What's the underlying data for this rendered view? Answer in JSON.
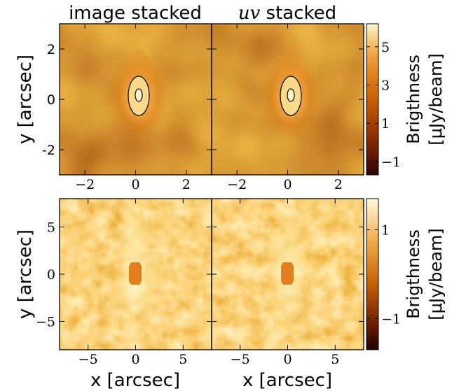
{
  "chart_data": {
    "type": "heatmap",
    "colormap": [
      "#2a0500",
      "#8e2d00",
      "#d46a00",
      "#f2a340",
      "#fff6c8"
    ],
    "top_row": {
      "panels": [
        {
          "title_math": "",
          "title_text": "image stacked"
        },
        {
          "title_math": "uv",
          "title_text": " stacked"
        }
      ],
      "x_range": [
        -3,
        3
      ],
      "y_range": [
        -3,
        3
      ],
      "x_ticks": [
        -2,
        0,
        2
      ],
      "y_ticks": [
        -2,
        0,
        2
      ],
      "x_tick_labels": [
        "−2",
        "0",
        "2"
      ],
      "y_tick_labels": [
        "-2",
        "0",
        "2"
      ],
      "ylabel": "y [arcsec]",
      "source": {
        "x": 0.1,
        "y": 0.1
      },
      "colorbar": {
        "range": [
          -1.7,
          6.2
        ],
        "ticks": [
          -1,
          1,
          3,
          5
        ],
        "tick_labels": [
          "−1",
          "1",
          "3",
          "5"
        ],
        "label_line1": "Brigthness",
        "label_line2": "[μJy/beam]"
      }
    },
    "bottom_row": {
      "x_range": [
        -8,
        8
      ],
      "y_range": [
        -8,
        8
      ],
      "x_ticks": [
        -5,
        0,
        5
      ],
      "y_ticks": [
        -5,
        0,
        5
      ],
      "x_tick_labels": [
        "−5",
        "0",
        "5"
      ],
      "y_tick_labels": [
        "−5",
        "0",
        "5"
      ],
      "xlabel": "x [arcsec]",
      "ylabel": "y [arcsec]",
      "masked_source": {
        "x": 0,
        "y": 0
      },
      "colorbar": {
        "range": [
          -1.7,
          1.7
        ],
        "ticks": [
          -1,
          1
        ],
        "tick_labels": [
          "−1",
          "1"
        ],
        "label_line1": "Brigthness",
        "label_line2": "[μJy/beam]"
      }
    }
  }
}
